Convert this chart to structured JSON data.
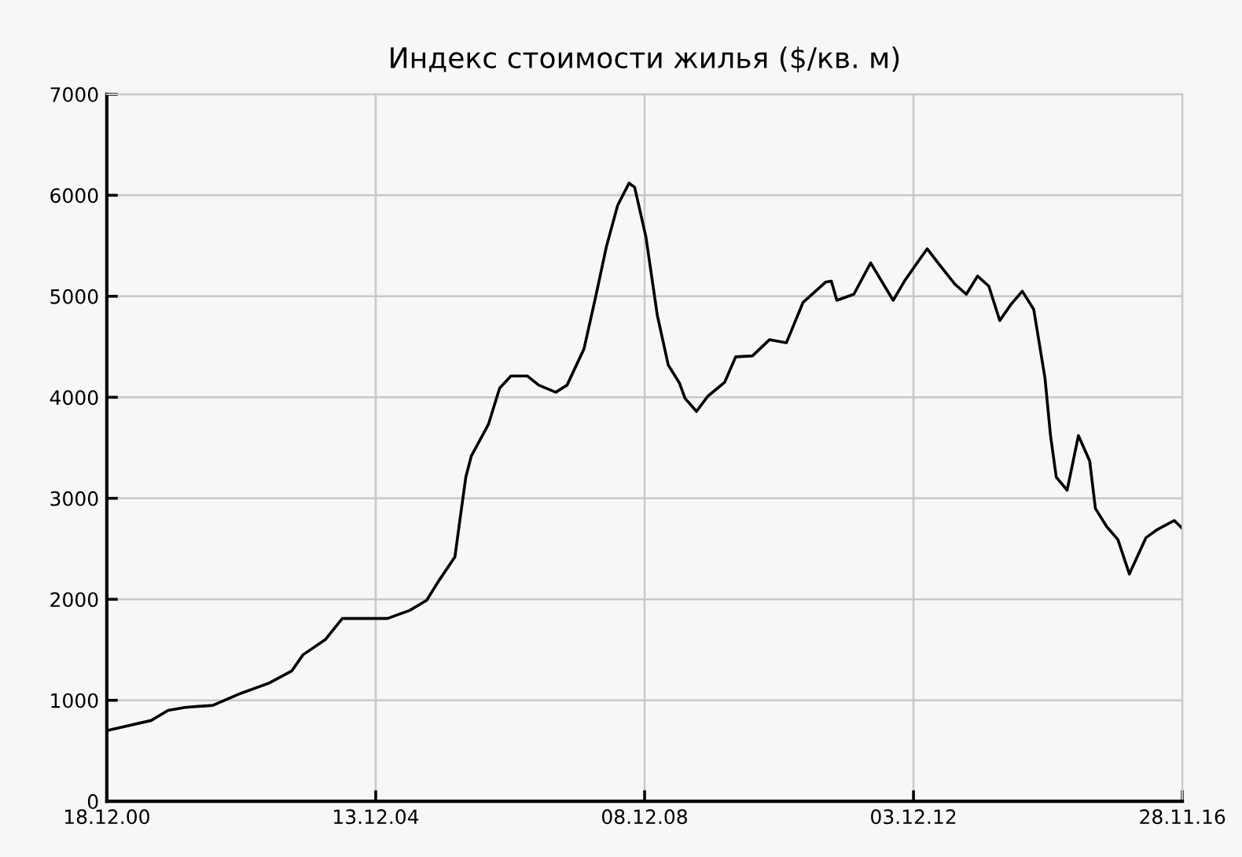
{
  "chart_data": {
    "type": "line",
    "title": "Индекс стоимости жилья ($/кв. м)",
    "x": [
      "2000-12-18",
      "2001-08",
      "2001-11",
      "2002-02",
      "2002-07",
      "2002-12",
      "2003-05",
      "2003-09",
      "2003-11",
      "2004-03",
      "2004-06",
      "2005-02",
      "2005-06",
      "2005-09",
      "2005-11",
      "2006-02",
      "2006-03",
      "2006-04",
      "2006-05",
      "2006-08",
      "2006-10",
      "2006-12",
      "2007-03",
      "2007-05",
      "2007-08",
      "2007-10",
      "2008-01",
      "2008-03",
      "2008-05",
      "2008-07",
      "2008-09",
      "2008-10",
      "2008-12",
      "2009-02",
      "2009-04",
      "2009-06",
      "2009-07",
      "2009-09",
      "2009-11",
      "2010-02",
      "2010-04",
      "2010-07",
      "2010-10",
      "2011-01",
      "2011-04",
      "2011-08",
      "2011-09",
      "2011-10",
      "2012-01",
      "2012-04",
      "2012-08",
      "2012-10",
      "2012-12",
      "2013-02",
      "2013-04",
      "2013-07",
      "2013-09",
      "2013-11",
      "2014-01",
      "2014-03",
      "2014-05",
      "2014-07",
      "2014-09",
      "2014-11",
      "2014-12",
      "2015-01",
      "2015-03",
      "2015-05",
      "2015-07",
      "2015-08",
      "2015-10",
      "2015-12",
      "2016-02",
      "2016-05",
      "2016-07",
      "2016-10",
      "2016-11-28"
    ],
    "series": [
      {
        "color": "#000000",
        "values": [
          700,
          800,
          900,
          930,
          950,
          1070,
          1170,
          1290,
          1450,
          1600,
          1810,
          1810,
          1890,
          1990,
          2170,
          2420,
          2800,
          3210,
          3420,
          3730,
          4090,
          4210,
          4210,
          4120,
          4050,
          4120,
          4480,
          4970,
          5490,
          5900,
          6120,
          6080,
          5590,
          4810,
          4320,
          4140,
          3990,
          3860,
          4010,
          4150,
          4400,
          4410,
          4570,
          4540,
          4940,
          5140,
          5150,
          4960,
          5020,
          5330,
          4960,
          5150,
          5310,
          5470,
          5330,
          5120,
          5020,
          5200,
          5100,
          4760,
          4920,
          5050,
          4870,
          4190,
          3620,
          3210,
          3080,
          3620,
          3370,
          2900,
          2720,
          2590,
          2250,
          2610,
          2690,
          2780,
          2700
        ]
      }
    ],
    "xlim": [
      "2000-12-18",
      "2016-11-28"
    ],
    "xticks": [
      {
        "value": "2000-12-18",
        "label": "18.12.00"
      },
      {
        "value": "2004-12-13",
        "label": "13.12.04"
      },
      {
        "value": "2008-12-08",
        "label": "08.12.08"
      },
      {
        "value": "2012-12-03",
        "label": "03.12.12"
      },
      {
        "value": "2016-11-28",
        "label": "28.11.16"
      }
    ],
    "ylim": [
      0,
      7000
    ],
    "yticks": [
      0,
      1000,
      2000,
      3000,
      4000,
      5000,
      6000,
      7000
    ],
    "grid": true,
    "line_style": "solid",
    "marker": "none"
  }
}
